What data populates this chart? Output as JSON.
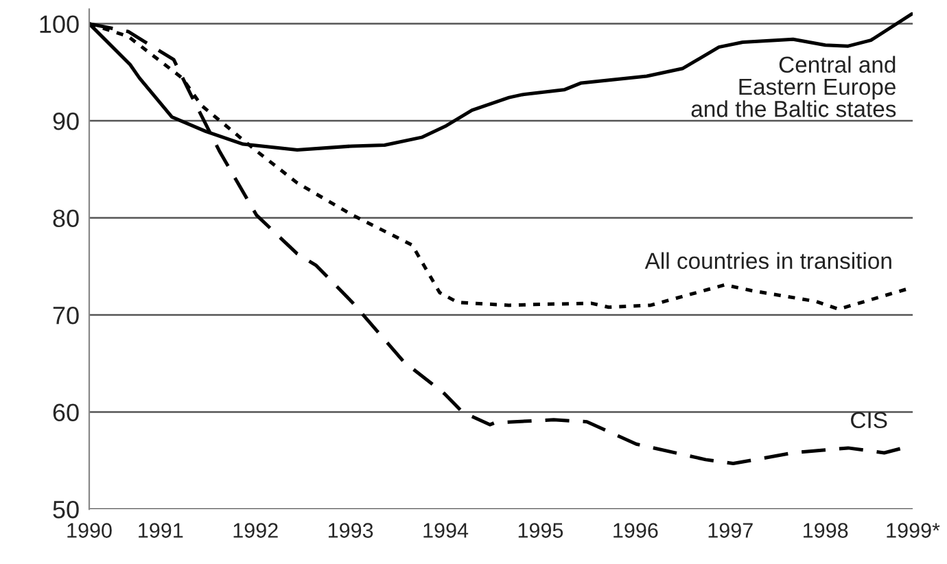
{
  "chart_data": {
    "type": "line",
    "xlim": [
      1990.25,
      1998.92
    ],
    "xticks": [
      {
        "value": 1990.25,
        "label": "1990"
      },
      1991,
      1992,
      1993,
      1994,
      1995,
      1996,
      1997,
      1998,
      {
        "value": 1998.92,
        "label": "1999*"
      }
    ],
    "ylim": [
      50,
      101.5
    ],
    "yticks": [
      50,
      60,
      70,
      80,
      90,
      100
    ],
    "grid": "y",
    "series": [
      {
        "name": "Central and\nEastern Europe\nand the Baltic states",
        "color": "#000000",
        "line_style": "solid",
        "x": [
          1990.25,
          1990.68,
          1990.78,
          1991.12,
          1991.48,
          1991.87,
          1992.44,
          1993.02,
          1993.36,
          1993.75,
          1994.01,
          1994.28,
          1994.67,
          1994.81,
          1995.25,
          1995.43,
          1996.12,
          1996.5,
          1996.88,
          1997.13,
          1997.66,
          1998.0,
          1998.24,
          1998.48,
          1998.91
        ],
        "values": [
          100,
          95.8,
          94.4,
          90.4,
          88.9,
          87.6,
          87.0,
          87.4,
          87.5,
          88.3,
          89.5,
          91.1,
          92.4,
          92.7,
          93.2,
          93.9,
          94.6,
          95.4,
          97.6,
          98.1,
          98.4,
          97.8,
          97.7,
          98.3,
          101.0
        ]
      },
      {
        "name": "All countries in transition",
        "color": "#000000",
        "line_style": "dotted",
        "x": [
          1990.25,
          1990.66,
          1991.23,
          1991.43,
          1992.01,
          1992.44,
          1993.02,
          1993.65,
          1993.94,
          1994.13,
          1994.67,
          1995.0,
          1995.54,
          1995.72,
          1996.16,
          1996.94,
          1997.23,
          1997.9,
          1998.14,
          1998.87
        ],
        "values": [
          100,
          98.7,
          94.4,
          91.6,
          86.9,
          83.6,
          80.3,
          77.2,
          72.3,
          71.3,
          71.0,
          71.1,
          71.2,
          70.8,
          71.0,
          73.1,
          72.5,
          71.4,
          70.6,
          72.7
        ]
      },
      {
        "name": "CIS",
        "color": "#000000",
        "line_style": "dashed",
        "x": [
          1990.25,
          1990.66,
          1991.14,
          1991.33,
          1991.62,
          1992.01,
          1992.44,
          1992.64,
          1993.02,
          1993.56,
          1993.99,
          1994.18,
          1994.47,
          1994.52,
          1995.14,
          1995.49,
          1996.01,
          1996.74,
          1997.03,
          1997.66,
          1998.24,
          1998.62,
          1998.82
        ],
        "values": [
          100,
          99.2,
          96.3,
          92.5,
          86.9,
          80.3,
          76.3,
          75.1,
          71.3,
          65.2,
          61.9,
          60.0,
          58.7,
          58.9,
          59.2,
          59.0,
          56.7,
          55.1,
          54.7,
          55.8,
          56.3,
          55.8,
          56.3
        ]
      }
    ]
  }
}
